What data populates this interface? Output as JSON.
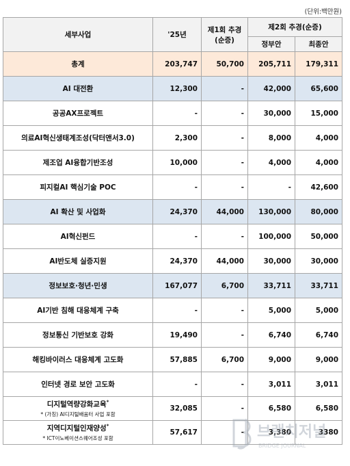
{
  "unit_label": "(단위:백만원)",
  "headers": {
    "project": "세부사업",
    "y25": "'25년",
    "supp1_line1": "제1회 추경",
    "supp1_line2": "(순증)",
    "supp2": "제2회 추경(순증)",
    "gov": "정부안",
    "final": "최종안"
  },
  "rows": [
    {
      "name": "총계",
      "y25": "203,747",
      "supp1": "50,700",
      "gov": "205,711",
      "final": "179,311",
      "type": "total"
    },
    {
      "name": "AI 대전환",
      "y25": "12,300",
      "supp1": "-",
      "gov": "42,000",
      "final": "65,600",
      "type": "cat"
    },
    {
      "name": "공공AX프로젝트",
      "y25": "-",
      "supp1": "-",
      "gov": "30,000",
      "final": "15,000",
      "type": "item"
    },
    {
      "name": "의료AI혁신생태계조성(닥터앤서3.0)",
      "y25": "2,300",
      "supp1": "-",
      "gov": "8,000",
      "final": "4,000",
      "type": "item"
    },
    {
      "name": "제조업 AI융합기반조성",
      "y25": "10,000",
      "supp1": "-",
      "gov": "4,000",
      "final": "4,000",
      "type": "item"
    },
    {
      "name": "피지컬AI 핵심기술 POC",
      "y25": "-",
      "supp1": "-",
      "gov": "-",
      "final": "42,600",
      "type": "item"
    },
    {
      "name": "AI 확산 및 사업화",
      "y25": "24,370",
      "supp1": "44,000",
      "gov": "130,000",
      "final": "80,000",
      "type": "cat"
    },
    {
      "name": "AI혁신펀드",
      "y25": "-",
      "supp1": "-",
      "gov": "100,000",
      "final": "50,000",
      "type": "item"
    },
    {
      "name": "AI반도체 실증지원",
      "y25": "24,370",
      "supp1": "44,000",
      "gov": "30,000",
      "final": "30,000",
      "type": "item"
    },
    {
      "name": "정보보호·청년·민생",
      "y25": "167,077",
      "supp1": "6,700",
      "gov": "33,711",
      "final": "33,711",
      "type": "cat"
    },
    {
      "name": "AI기반 침해 대응체계 구축",
      "y25": "-",
      "supp1": "-",
      "gov": "5,000",
      "final": "5,000",
      "type": "item"
    },
    {
      "name": "정보통신 기반보호 강화",
      "y25": "19,490",
      "supp1": "-",
      "gov": "6,740",
      "final": "6,740",
      "type": "item"
    },
    {
      "name": "해킹바이러스 대응체계 고도화",
      "y25": "57,885",
      "supp1": "6,700",
      "gov": "9,000",
      "final": "9,000",
      "type": "item"
    },
    {
      "name": "인터넷 경로 보안 고도화",
      "y25": "-",
      "supp1": "-",
      "gov": "3,011",
      "final": "3,011",
      "type": "item"
    },
    {
      "name": "디지털역량강화교육",
      "note": "* (가칭) AI디지털배움터 사업 포함",
      "y25": "32,085",
      "supp1": "-",
      "gov": "6,580",
      "final": "6,580",
      "type": "note"
    },
    {
      "name": "지역디지털인재양성",
      "note": "* ICT이노베이션스퀘어조성 포함",
      "y25": "57,617",
      "supp1": "-",
      "gov": "3,380",
      "final": "3380",
      "type": "note"
    }
  ],
  "footnote_mark": "*",
  "watermark_text": "브랜치저널",
  "watermark_sub": "BRIDGE JOURNAL",
  "colors": {
    "total_bg": "#fde9d9",
    "category_bg": "#dce6f1",
    "header_bg": "#f2f2f2",
    "border": "#a6a6a6"
  }
}
